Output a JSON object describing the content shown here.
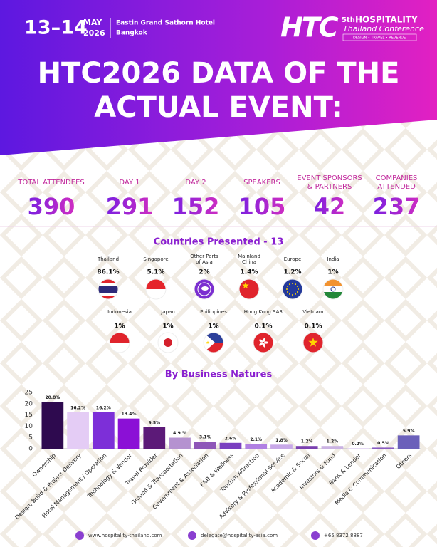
{
  "header": {
    "date": "13–14",
    "month": "MAY",
    "year": "2026",
    "venue": "Eastin Grand Sathorn Hotel",
    "city": "Bangkok",
    "logo": "HTC",
    "edition": "5th",
    "conference_name": "HOSPITALITY",
    "conference_sub": "Thailand Conference",
    "tagline": "DESIGN • TRAVEL • REVENUE"
  },
  "title": [
    "HTC2026 DATA OF THE",
    "ACTUAL EVENT:"
  ],
  "stats": [
    {
      "label": [
        "TOTAL ATTENDEES"
      ],
      "value": "390"
    },
    {
      "label": [
        "DAY 1"
      ],
      "value": "291"
    },
    {
      "label": [
        "DAY 2"
      ],
      "value": "152"
    },
    {
      "label": [
        "SPEAKERS"
      ],
      "value": "105"
    },
    {
      "label": [
        "EVENT SPONSORS",
        "& PARTNERS"
      ],
      "value": "42"
    },
    {
      "label": [
        "COMPANIES",
        "ATTENDED"
      ],
      "value": "237"
    }
  ],
  "countries": {
    "title": "Countries Presented - 13",
    "items": [
      {
        "name": [
          "Thailand"
        ],
        "percent": "86.1%"
      },
      {
        "name": [
          "Singapore"
        ],
        "percent": "5.1%"
      },
      {
        "name": [
          "Other Parts",
          "of Asia"
        ],
        "percent": "2%"
      },
      {
        "name": [
          "Mainland",
          "China"
        ],
        "percent": "1.4%"
      },
      {
        "name": [
          "Europe"
        ],
        "percent": "1.2%"
      },
      {
        "name": [
          "India"
        ],
        "percent": "1%"
      },
      {
        "name": [
          "Indonesia"
        ],
        "percent": "1%"
      },
      {
        "name": [
          "Japan"
        ],
        "percent": "1%"
      },
      {
        "name": [
          "Philippines"
        ],
        "percent": "1%"
      },
      {
        "name": [
          "Hong Kong SAR"
        ],
        "percent": "0.1%"
      },
      {
        "name": [
          "Vietnam"
        ],
        "percent": "0.1%"
      }
    ]
  },
  "chart_data": {
    "type": "bar",
    "title": "By Business Natures",
    "categories": [
      "Ownership",
      "Design, Build & Project Delivery",
      "Hotel Management / Operation",
      "Technology & Vendor",
      "Travel Provider",
      "Ground & Transportation",
      "Government & Association",
      "F&B & Wellness",
      "Tourism Attraction",
      "Advisory & Professional Service",
      "Academic & Social",
      "Investors & Fund",
      "Bank & Lender",
      "Media & Communication",
      "Others"
    ],
    "values": [
      20.8,
      16.2,
      16.2,
      13.4,
      9.5,
      4.9,
      3.1,
      2.6,
      2.1,
      1.8,
      1.2,
      1.2,
      0.2,
      0.5,
      5.9
    ],
    "value_labels": [
      "20.8%",
      "16.2%",
      "16.2%",
      "13.4%",
      "9.5%",
      "4.9 %",
      "3.1%",
      "2.6%",
      "2.1%",
      "1.8%",
      "1.2%",
      "1.2%",
      "0.2%",
      "0.5%",
      "5.9%"
    ],
    "colors": [
      "#2e0a4f",
      "#e4ccf5",
      "#7d2fd8",
      "#8b10d6",
      "#5c1a78",
      "#b592d0",
      "#8e56b8",
      "#7a3fc0",
      "#b07fe2",
      "#c8a8e8",
      "#7a40b0",
      "#cab2e2",
      "#d8c4ef",
      "#8a5cc2",
      "#6b60ba"
    ],
    "ylim": [
      0,
      25
    ],
    "yticks": [
      0,
      5,
      10,
      15,
      20,
      25
    ],
    "grid": false
  },
  "footer": {
    "website": "www.hospitality-thailand.com",
    "email": "delegate@hospitality-asia.com",
    "phone": "+65 8372 8887"
  }
}
